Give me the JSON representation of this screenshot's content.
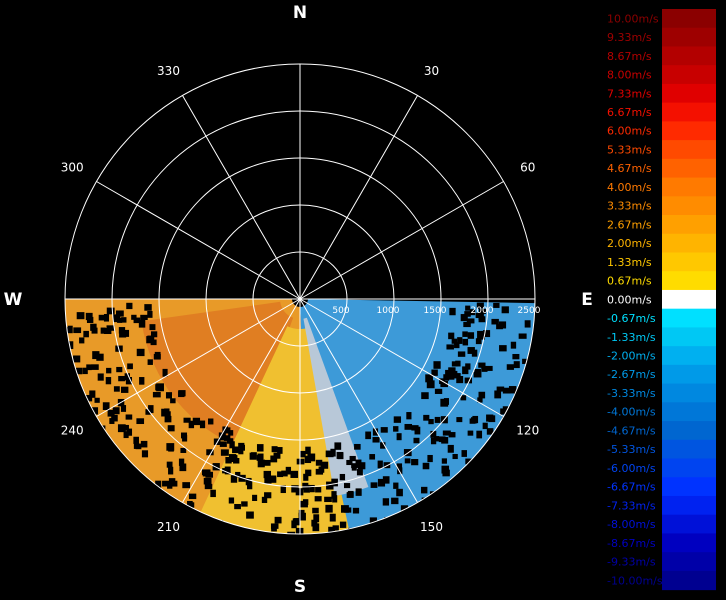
{
  "chart_data": {
    "type": "polar-radar-velocity",
    "compass": [
      "N",
      "E",
      "S",
      "W"
    ],
    "azimuth_labels": [
      "30",
      "60",
      "120",
      "150",
      "210",
      "240",
      "300",
      "330"
    ],
    "range_labels": [
      "500",
      "1000",
      "1500",
      "2000",
      "2500"
    ],
    "range_max": 2500,
    "coverage_sector_deg": [
      90,
      270
    ],
    "colorbar": {
      "unit": "m/s",
      "labels": [
        "10.00m/s",
        "9.33m/s",
        "8.67m/s",
        "8.00m/s",
        "7.33m/s",
        "6.67m/s",
        "6.00m/s",
        "5.33m/s",
        "4.67m/s",
        "4.00m/s",
        "3.33m/s",
        "2.67m/s",
        "2.00m/s",
        "1.33m/s",
        "0.67m/s",
        "0.00m/s",
        "-0.67m/s",
        "-1.33m/s",
        "-2.00m/s",
        "-2.67m/s",
        "-3.33m/s",
        "-4.00m/s",
        "-4.67m/s",
        "-5.33m/s",
        "-6.00m/s",
        "-6.67m/s",
        "-7.33m/s",
        "-8.00m/s",
        "-8.67m/s",
        "-9.33m/s",
        "-10.00m/s"
      ],
      "colors": [
        "#8b0000",
        "#9e0000",
        "#b30000",
        "#c80000",
        "#e00000",
        "#f41000",
        "#ff2a00",
        "#ff4a00",
        "#ff6200",
        "#ff7a00",
        "#ff8c00",
        "#ffa000",
        "#ffb400",
        "#ffc800",
        "#ffdc00",
        "#ffffff",
        "#00e0ff",
        "#00c8f4",
        "#00b0f0",
        "#009ae8",
        "#0088e0",
        "#0077d8",
        "#0066d0",
        "#0055e0",
        "#0044f0",
        "#0033ff",
        "#0022f0",
        "#0011d8",
        "#0000c0",
        "#0000a8",
        "#000090"
      ]
    }
  }
}
